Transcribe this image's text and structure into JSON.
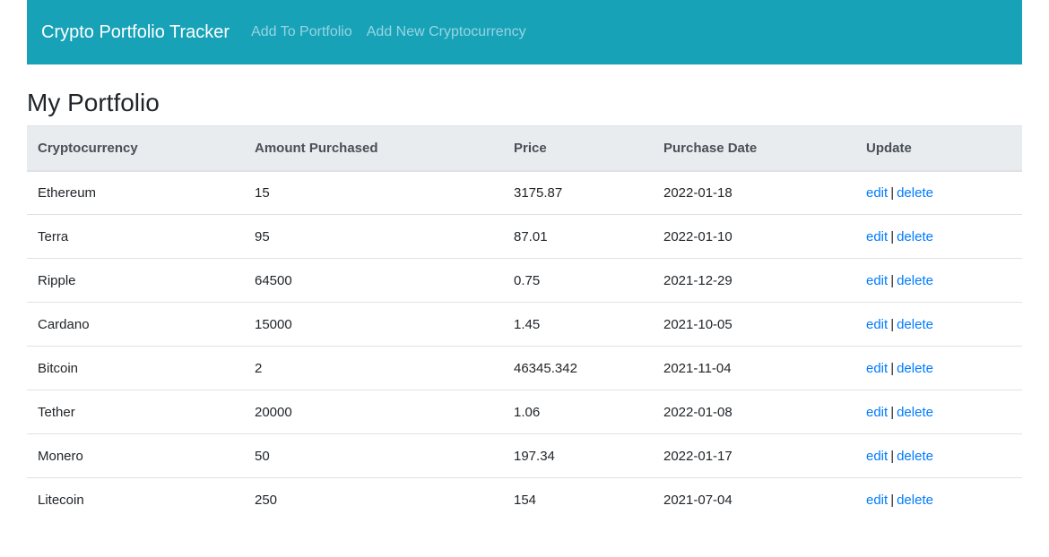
{
  "navbar": {
    "brand": "Crypto Portfolio Tracker",
    "links": [
      "Add To Portfolio",
      "Add New Cryptocurrency"
    ],
    "bg_color": "#17a2b8"
  },
  "page_title": "My Portfolio",
  "table": {
    "headers": [
      "Cryptocurrency",
      "Amount Purchased",
      "Price",
      "Purchase Date",
      "Update"
    ],
    "rows": [
      {
        "name": "Ethereum",
        "amount": "15",
        "price": "3175.87",
        "date": "2022-01-18",
        "edit": "edit",
        "sep": "|",
        "delete": "delete"
      },
      {
        "name": "Terra",
        "amount": "95",
        "price": "87.01",
        "date": "2022-01-10",
        "edit": "edit",
        "sep": "|",
        "delete": "delete"
      },
      {
        "name": "Ripple",
        "amount": "64500",
        "price": "0.75",
        "date": "2021-12-29",
        "edit": "edit",
        "sep": "|",
        "delete": "delete"
      },
      {
        "name": "Cardano",
        "amount": "15000",
        "price": "1.45",
        "date": "2021-10-05",
        "edit": "edit",
        "sep": "|",
        "delete": "delete"
      },
      {
        "name": "Bitcoin",
        "amount": "2",
        "price": "46345.342",
        "date": "2021-11-04",
        "edit": "edit",
        "sep": "|",
        "delete": "delete"
      },
      {
        "name": "Tether",
        "amount": "20000",
        "price": "1.06",
        "date": "2022-01-08",
        "edit": "edit",
        "sep": "|",
        "delete": "delete"
      },
      {
        "name": "Monero",
        "amount": "50",
        "price": "197.34",
        "date": "2022-01-17",
        "edit": "edit",
        "sep": "|",
        "delete": "delete"
      },
      {
        "name": "Litecoin",
        "amount": "250",
        "price": "154",
        "date": "2021-07-04",
        "edit": "edit",
        "sep": "|",
        "delete": "delete"
      }
    ]
  }
}
